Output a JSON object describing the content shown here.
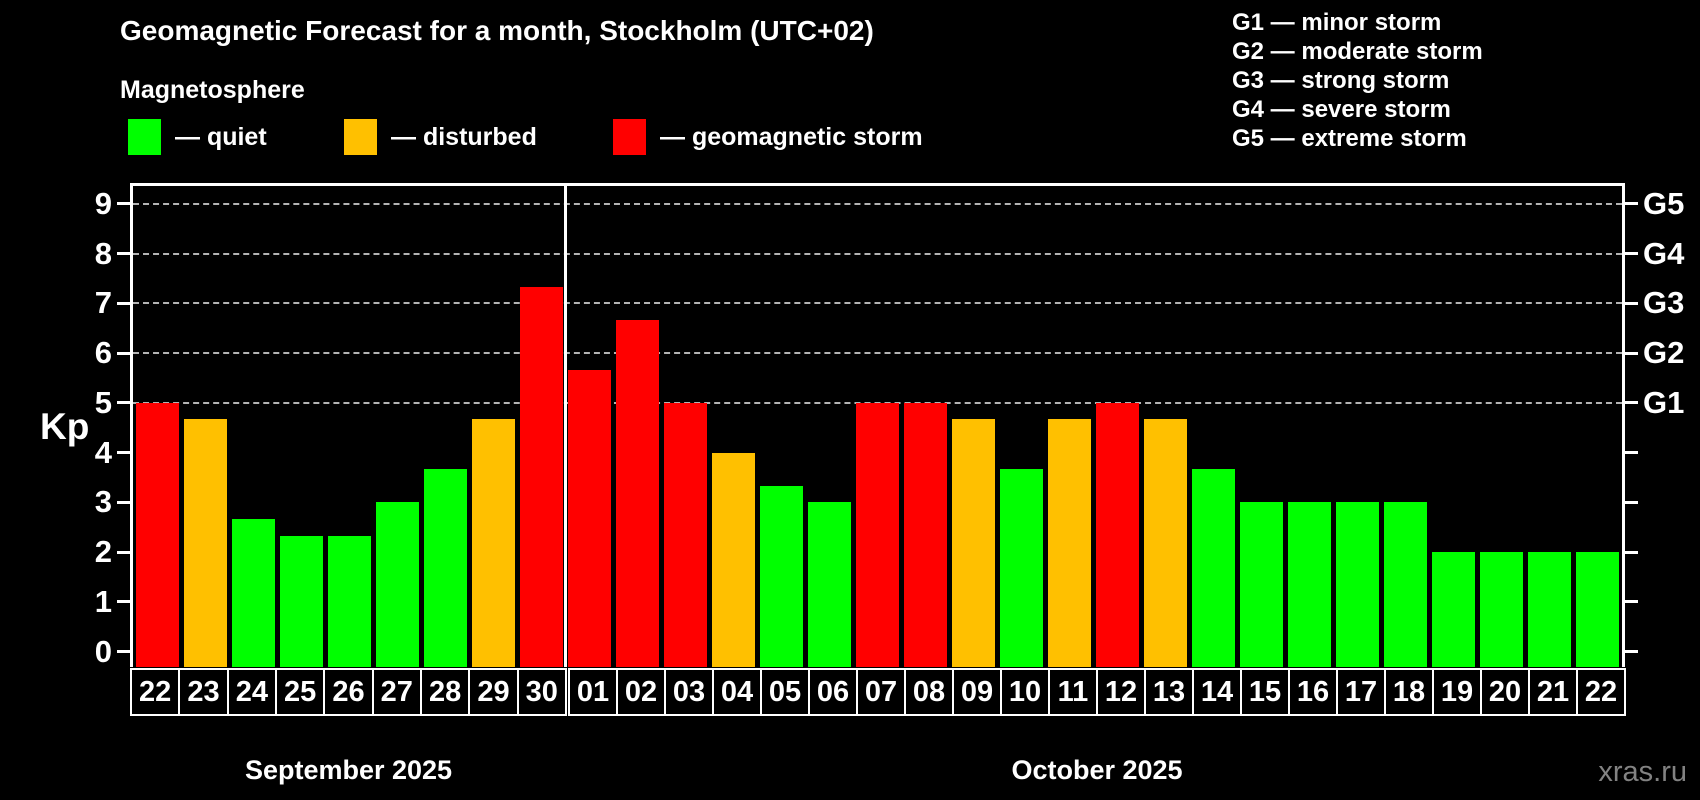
{
  "header": {
    "title": "Geomagnetic Forecast for a month, Stockholm (UTC+02)",
    "subtitle": "Magnetosphere"
  },
  "legend": {
    "items": [
      {
        "name": "quiet",
        "label": "— quiet",
        "color": "#00ff00"
      },
      {
        "name": "disturbed",
        "label": "— disturbed",
        "color": "#ffc000"
      },
      {
        "name": "storm",
        "label": "— geomagnetic storm",
        "color": "#ff0000"
      }
    ]
  },
  "storm_scale_legend": {
    "lines": [
      "G1 — minor storm",
      "G2 — moderate storm",
      "G3 — strong storm",
      "G4 — severe storm",
      "G5 — extreme storm"
    ]
  },
  "watermark": "xras.ru",
  "chart_data": {
    "type": "bar",
    "title": "Geomagnetic Forecast for a month, Stockholm (UTC+02)",
    "subtitle": "Magnetosphere",
    "xlabel": "",
    "ylabel": "Kp",
    "ylim": [
      -0.31,
      9.36
    ],
    "y_ticks": [
      0,
      1,
      2,
      3,
      4,
      5,
      6,
      7,
      8,
      9
    ],
    "gridlines_at": [
      5,
      6,
      7,
      8,
      9
    ],
    "grid": "horizontal dashed lines at Kp 5-9 only",
    "legend_position": "top-left above plot",
    "right_axis_g_labels": [
      {
        "kp": 5,
        "label": "G1"
      },
      {
        "kp": 6,
        "label": "G2"
      },
      {
        "kp": 7,
        "label": "G3"
      },
      {
        "kp": 8,
        "label": "G4"
      },
      {
        "kp": 9,
        "label": "G5"
      }
    ],
    "months": [
      {
        "label": "September 2025",
        "days": 9
      },
      {
        "label": "October 2025",
        "days": 22
      }
    ],
    "categories": [
      "22",
      "23",
      "24",
      "25",
      "26",
      "27",
      "28",
      "29",
      "30",
      "01",
      "02",
      "03",
      "04",
      "05",
      "06",
      "07",
      "08",
      "09",
      "10",
      "11",
      "12",
      "13",
      "14",
      "15",
      "16",
      "17",
      "18",
      "19",
      "20",
      "21",
      "22"
    ],
    "values": [
      5,
      4.67,
      2.67,
      2.33,
      2.33,
      3,
      3.67,
      4.67,
      7.33,
      5.67,
      6.67,
      5,
      4,
      3.33,
      3,
      5,
      5,
      4.67,
      3.67,
      4.67,
      5,
      4.67,
      3.67,
      3,
      3,
      3,
      3,
      2,
      2,
      2,
      2
    ],
    "statuses": [
      "storm",
      "disturbed",
      "quiet",
      "quiet",
      "quiet",
      "quiet",
      "quiet",
      "disturbed",
      "storm",
      "storm",
      "storm",
      "storm",
      "disturbed",
      "quiet",
      "quiet",
      "storm",
      "storm",
      "disturbed",
      "quiet",
      "disturbed",
      "storm",
      "disturbed",
      "quiet",
      "quiet",
      "quiet",
      "quiet",
      "quiet",
      "quiet",
      "quiet",
      "quiet",
      "quiet"
    ],
    "status_colors": {
      "quiet": "#00ff00",
      "disturbed": "#ffc000",
      "storm": "#ff0000"
    }
  }
}
